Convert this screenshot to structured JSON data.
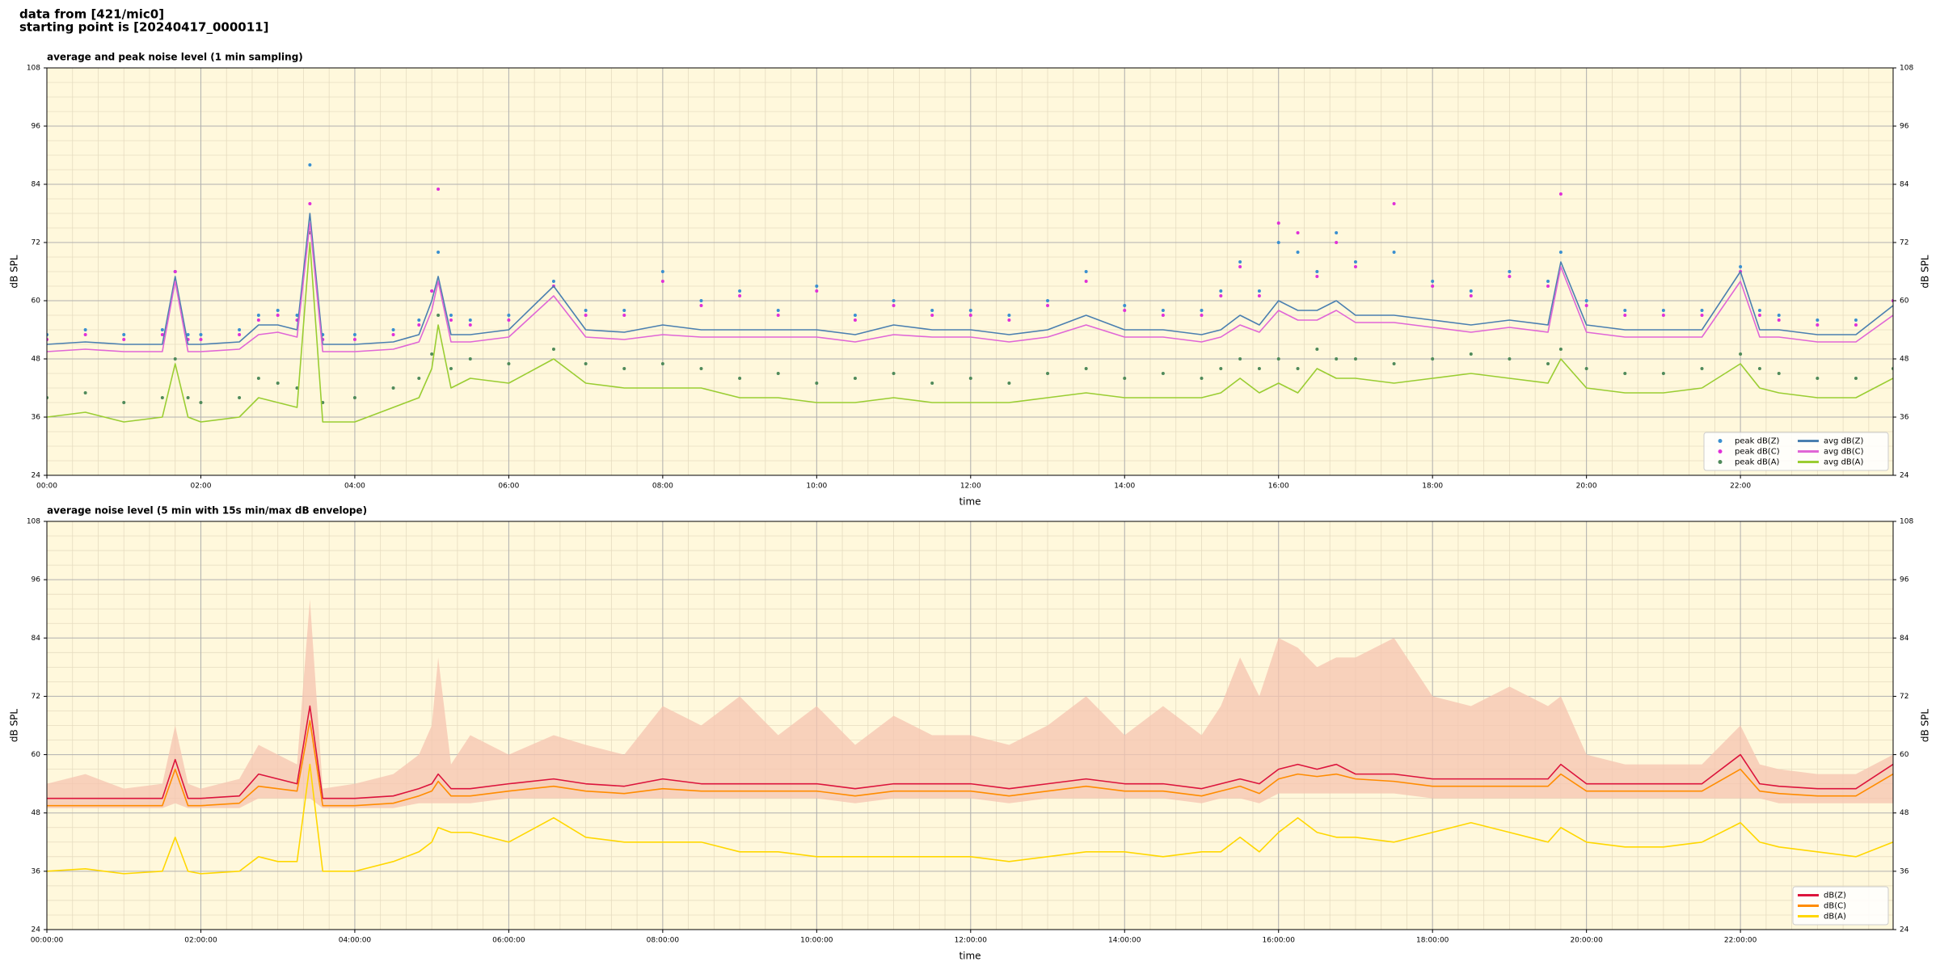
{
  "header": {
    "line1": "data from [421/mic0]",
    "line2": "starting point is [20240417_000011]"
  },
  "chart_data": [
    {
      "type": "line",
      "title": "average and peak noise level (1 min sampling)",
      "xlabel": "time",
      "ylabel": "dB SPL",
      "x": [
        0,
        30,
        60,
        90,
        100,
        110,
        120,
        150,
        165,
        180,
        195,
        205,
        215,
        240,
        270,
        290,
        300,
        305,
        315,
        330,
        360,
        395,
        420,
        450,
        480,
        510,
        540,
        570,
        600,
        630,
        660,
        690,
        720,
        750,
        780,
        810,
        840,
        870,
        900,
        915,
        930,
        945,
        960,
        975,
        990,
        1005,
        1020,
        1050,
        1080,
        1110,
        1140,
        1170,
        1180,
        1200,
        1230,
        1260,
        1290,
        1320,
        1335,
        1350,
        1380,
        1410,
        1439
      ],
      "xlim": [
        0,
        1439
      ],
      "xticks": [
        {
          "value": 0,
          "label": "00:00"
        },
        {
          "value": 120,
          "label": "02:00"
        },
        {
          "value": 240,
          "label": "04:00"
        },
        {
          "value": 360,
          "label": "06:00"
        },
        {
          "value": 480,
          "label": "08:00"
        },
        {
          "value": 600,
          "label": "10:00"
        },
        {
          "value": 720,
          "label": "12:00"
        },
        {
          "value": 840,
          "label": "14:00"
        },
        {
          "value": 960,
          "label": "16:00"
        },
        {
          "value": 1080,
          "label": "18:00"
        },
        {
          "value": 1200,
          "label": "20:00"
        },
        {
          "value": 1320,
          "label": "22:00"
        }
      ],
      "ylim": [
        24,
        108
      ],
      "yticks": [
        24,
        36,
        48,
        60,
        72,
        84,
        96,
        108
      ],
      "grid": true,
      "legend": "lower right",
      "background": "#fff8dc",
      "series": [
        {
          "name": "peak dB(Z)",
          "type": "scatter",
          "color": "#3a8fd0",
          "values": [
            53,
            54,
            53,
            54,
            66,
            53,
            53,
            54,
            57,
            58,
            57,
            88,
            53,
            53,
            54,
            56,
            62,
            70,
            57,
            56,
            57,
            64,
            58,
            58,
            66,
            60,
            62,
            58,
            63,
            57,
            60,
            58,
            58,
            57,
            60,
            66,
            59,
            58,
            58,
            62,
            68,
            62,
            72,
            70,
            66,
            74,
            68,
            70,
            64,
            62,
            66,
            64,
            70,
            60,
            58,
            58,
            58,
            67,
            58,
            57,
            56,
            56,
            60
          ]
        },
        {
          "name": "peak dB(C)",
          "type": "scatter",
          "color": "#e030d8",
          "values": [
            52,
            53,
            52,
            53,
            66,
            52,
            52,
            53,
            56,
            57,
            56,
            80,
            52,
            52,
            53,
            55,
            62,
            83,
            56,
            55,
            56,
            63,
            57,
            57,
            64,
            59,
            61,
            57,
            62,
            56,
            59,
            57,
            57,
            56,
            59,
            64,
            58,
            57,
            57,
            61,
            67,
            61,
            76,
            74,
            65,
            72,
            67,
            80,
            63,
            61,
            65,
            63,
            82,
            59,
            57,
            57,
            57,
            66,
            57,
            56,
            55,
            55,
            60
          ]
        },
        {
          "name": "peak dB(A)",
          "type": "scatter",
          "color": "#4f8a5a",
          "values": [
            40,
            41,
            39,
            40,
            48,
            40,
            39,
            40,
            44,
            43,
            42,
            74,
            39,
            40,
            42,
            44,
            49,
            57,
            46,
            48,
            47,
            50,
            47,
            46,
            47,
            46,
            44,
            45,
            43,
            44,
            45,
            43,
            44,
            43,
            45,
            46,
            44,
            45,
            44,
            46,
            48,
            46,
            48,
            46,
            50,
            48,
            48,
            47,
            48,
            49,
            48,
            47,
            50,
            46,
            45,
            45,
            46,
            49,
            46,
            45,
            44,
            44,
            46
          ]
        },
        {
          "name": "avg dB(Z)",
          "type": "line",
          "color": "#4a7fb0",
          "values": [
            51,
            51.5,
            51,
            51,
            65,
            51,
            51,
            51.5,
            55,
            55,
            54,
            78,
            51,
            51,
            51.5,
            53,
            60,
            65,
            53,
            53,
            54,
            63,
            54,
            53.5,
            55,
            54,
            54,
            54,
            54,
            53,
            55,
            54,
            54,
            53,
            54,
            57,
            54,
            54,
            53,
            54,
            57,
            55,
            60,
            58,
            58,
            60,
            57,
            57,
            56,
            55,
            56,
            55,
            68,
            55,
            54,
            54,
            54,
            66,
            54,
            54,
            53,
            53,
            59
          ]
        },
        {
          "name": "avg dB(C)",
          "type": "line",
          "color": "#e066d6",
          "values": [
            49.5,
            50,
            49.5,
            49.5,
            64,
            49.5,
            49.5,
            50,
            53,
            53.5,
            52.5,
            76,
            49.5,
            49.5,
            50,
            51.5,
            58,
            64,
            51.5,
            51.5,
            52.5,
            61,
            52.5,
            52,
            53,
            52.5,
            52.5,
            52.5,
            52.5,
            51.5,
            53,
            52.5,
            52.5,
            51.5,
            52.5,
            55,
            52.5,
            52.5,
            51.5,
            52.5,
            55,
            53.5,
            58,
            56,
            56,
            58,
            55.5,
            55.5,
            54.5,
            53.5,
            54.5,
            53.5,
            67,
            53.5,
            52.5,
            52.5,
            52.5,
            64,
            52.5,
            52.5,
            51.5,
            51.5,
            57
          ]
        },
        {
          "name": "avg dB(A)",
          "type": "line",
          "color": "#9acd32",
          "values": [
            36,
            37,
            35,
            36,
            47,
            36,
            35,
            36,
            40,
            39,
            38,
            72,
            35,
            35,
            38,
            40,
            46,
            55,
            42,
            44,
            43,
            48,
            43,
            42,
            42,
            42,
            40,
            40,
            39,
            39,
            40,
            39,
            39,
            39,
            40,
            41,
            40,
            40,
            40,
            41,
            44,
            41,
            43,
            41,
            46,
            44,
            44,
            43,
            44,
            45,
            44,
            43,
            48,
            42,
            41,
            41,
            42,
            47,
            42,
            41,
            40,
            40,
            44
          ]
        }
      ]
    },
    {
      "type": "line",
      "title": "average noise level (5 min with 15s min/max dB envelope)",
      "xlabel": "time",
      "ylabel": "dB SPL",
      "x": [
        0,
        30,
        60,
        90,
        100,
        110,
        120,
        150,
        165,
        180,
        195,
        205,
        215,
        240,
        270,
        290,
        300,
        305,
        315,
        330,
        360,
        395,
        420,
        450,
        480,
        510,
        540,
        570,
        600,
        630,
        660,
        690,
        720,
        750,
        780,
        810,
        840,
        870,
        900,
        915,
        930,
        945,
        960,
        975,
        990,
        1005,
        1020,
        1050,
        1080,
        1110,
        1140,
        1170,
        1180,
        1200,
        1230,
        1260,
        1290,
        1320,
        1335,
        1350,
        1380,
        1410,
        1439
      ],
      "xlim": [
        0,
        1439
      ],
      "xticks": [
        {
          "value": 0,
          "label": "00:00:00"
        },
        {
          "value": 120,
          "label": "02:00:00"
        },
        {
          "value": 240,
          "label": "04:00:00"
        },
        {
          "value": 360,
          "label": "06:00:00"
        },
        {
          "value": 480,
          "label": "08:00:00"
        },
        {
          "value": 600,
          "label": "10:00:00"
        },
        {
          "value": 720,
          "label": "12:00:00"
        },
        {
          "value": 840,
          "label": "14:00:00"
        },
        {
          "value": 960,
          "label": "16:00:00"
        },
        {
          "value": 1080,
          "label": "18:00:00"
        },
        {
          "value": 1200,
          "label": "20:00:00"
        },
        {
          "value": 1320,
          "label": "22:00:00"
        }
      ],
      "ylim": [
        24,
        108
      ],
      "yticks": [
        24,
        36,
        48,
        60,
        72,
        84,
        96,
        108
      ],
      "grid": true,
      "legend": "lower right",
      "background": "#fff8dc",
      "envelope": {
        "color": "#f6c4b0",
        "max": [
          54,
          56,
          53,
          54,
          66,
          54,
          53,
          55,
          62,
          60,
          58,
          92,
          53,
          54,
          56,
          60,
          66,
          80,
          58,
          64,
          60,
          64,
          62,
          60,
          70,
          66,
          72,
          64,
          70,
          62,
          68,
          64,
          64,
          62,
          66,
          72,
          64,
          70,
          64,
          70,
          80,
          72,
          84,
          82,
          78,
          80,
          80,
          84,
          72,
          70,
          74,
          70,
          72,
          60,
          58,
          58,
          58,
          66,
          58,
          57,
          56,
          56,
          60
        ],
        "min": [
          49,
          49,
          49,
          49,
          50,
          49,
          49,
          49,
          51,
          51,
          51,
          51,
          49,
          49,
          49,
          50,
          50,
          50,
          50,
          50,
          51,
          51,
          51,
          51,
          51,
          51,
          51,
          51,
          51,
          50,
          51,
          51,
          51,
          50,
          51,
          51,
          51,
          51,
          50,
          51,
          51,
          50,
          52,
          52,
          52,
          52,
          52,
          52,
          51,
          51,
          51,
          51,
          51,
          51,
          51,
          51,
          51,
          51,
          51,
          50,
          50,
          50,
          50
        ]
      },
      "series": [
        {
          "name": "dB(Z)",
          "type": "line",
          "color": "#dc143c",
          "values": [
            51,
            51,
            51,
            51,
            59,
            51,
            51,
            51.5,
            56,
            55,
            54,
            70,
            51,
            51,
            51.5,
            53,
            54,
            56,
            53,
            53,
            54,
            55,
            54,
            53.5,
            55,
            54,
            54,
            54,
            54,
            53,
            54,
            54,
            54,
            53,
            54,
            55,
            54,
            54,
            53,
            54,
            55,
            54,
            57,
            58,
            57,
            58,
            56,
            56,
            55,
            55,
            55,
            55,
            58,
            54,
            54,
            54,
            54,
            60,
            54,
            53.5,
            53,
            53,
            58
          ]
        },
        {
          "name": "dB(C)",
          "type": "line",
          "color": "#ff8c00",
          "values": [
            49.5,
            49.5,
            49.5,
            49.5,
            57,
            49.5,
            49.5,
            50,
            53.5,
            53,
            52.5,
            67,
            49.5,
            49.5,
            50,
            51.5,
            52.5,
            54.5,
            51.5,
            51.5,
            52.5,
            53.5,
            52.5,
            52,
            53,
            52.5,
            52.5,
            52.5,
            52.5,
            51.5,
            52.5,
            52.5,
            52.5,
            51.5,
            52.5,
            53.5,
            52.5,
            52.5,
            51.5,
            52.5,
            53.5,
            52,
            55,
            56,
            55.5,
            56,
            55,
            54.5,
            53.5,
            53.5,
            53.5,
            53.5,
            56,
            52.5,
            52.5,
            52.5,
            52.5,
            57,
            52.5,
            52,
            51.5,
            51.5,
            56
          ]
        },
        {
          "name": "dB(A)",
          "type": "line",
          "color": "#ffd700",
          "values": [
            36,
            36.5,
            35.5,
            36,
            43,
            36,
            35.5,
            36,
            39,
            38,
            38,
            58,
            36,
            36,
            38,
            40,
            42,
            45,
            44,
            44,
            42,
            47,
            43,
            42,
            42,
            42,
            40,
            40,
            39,
            39,
            39,
            39,
            39,
            38,
            39,
            40,
            40,
            39,
            40,
            40,
            43,
            40,
            44,
            47,
            44,
            43,
            43,
            42,
            44,
            46,
            44,
            42,
            45,
            42,
            41,
            41,
            42,
            46,
            42,
            41,
            40,
            39,
            42
          ]
        }
      ]
    }
  ]
}
